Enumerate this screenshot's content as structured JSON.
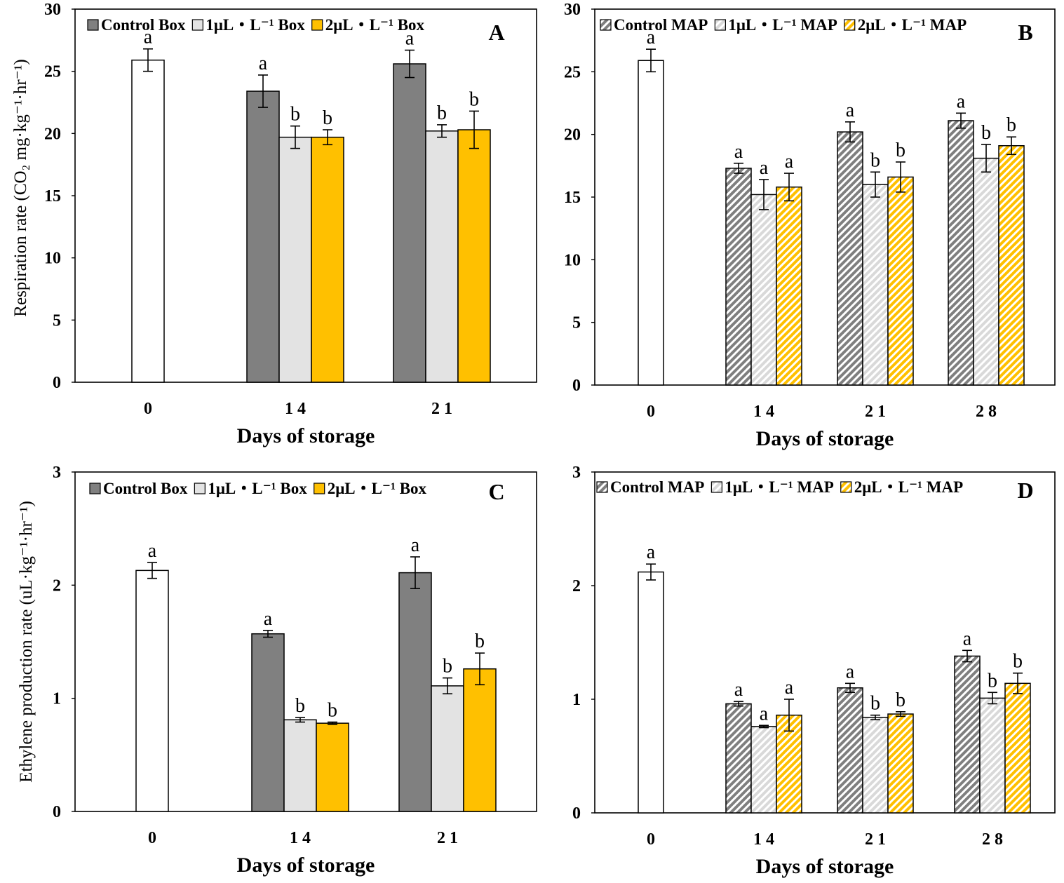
{
  "colors": {
    "initial": "#ffffff",
    "control": "#808080",
    "one": "#e3e3e3",
    "two": "#ffc000",
    "hatch_control": "#7f7f7f",
    "hatch_one": "#d9d9d9",
    "hatch_two": "#ffc000"
  },
  "chart_data": [
    {
      "type": "bar",
      "panel": "A",
      "xlabel": "Days of storage",
      "ylabel": "Respiration rate (CO₂ mg·kg⁻¹·hr⁻¹)",
      "ylim": [
        0,
        30
      ],
      "yticks": [
        0,
        5,
        10,
        15,
        20,
        25,
        30
      ],
      "categories": [
        "0",
        "14",
        "21"
      ],
      "legend_position": "top",
      "initial": {
        "value": 25.9,
        "err": 0.9,
        "label": "a"
      },
      "series": [
        {
          "name": "Control Box",
          "key": "control",
          "values": [
            null,
            23.4,
            25.6
          ],
          "err": [
            null,
            1.3,
            1.1
          ],
          "labels": [
            "",
            "a",
            "a"
          ]
        },
        {
          "name": "1μL・L⁻¹ Box",
          "key": "one",
          "values": [
            null,
            19.7,
            20.2
          ],
          "err": [
            null,
            0.9,
            0.5
          ],
          "labels": [
            "",
            "b",
            "b"
          ]
        },
        {
          "name": "2μL・L⁻¹ Box",
          "key": "two",
          "values": [
            null,
            19.7,
            20.3
          ],
          "err": [
            null,
            0.6,
            1.5
          ],
          "labels": [
            "",
            "b",
            "b"
          ]
        }
      ]
    },
    {
      "type": "bar",
      "panel": "B",
      "xlabel": "Days of storage",
      "ylabel": "",
      "ylim": [
        0,
        30
      ],
      "yticks": [
        0,
        5,
        10,
        15,
        20,
        25,
        30
      ],
      "categories": [
        "0",
        "14",
        "21",
        "28"
      ],
      "legend_position": "top",
      "initial": {
        "value": 25.9,
        "err": 0.9,
        "label": "a"
      },
      "series": [
        {
          "name": "Control MAP",
          "key": "control",
          "hatched": true,
          "values": [
            null,
            17.3,
            20.2,
            21.1
          ],
          "err": [
            null,
            0.4,
            0.8,
            0.6
          ],
          "labels": [
            "",
            "a",
            "a",
            "a"
          ]
        },
        {
          "name": "1μL・L⁻¹ MAP",
          "key": "one",
          "hatched": true,
          "values": [
            null,
            15.2,
            16.0,
            18.1
          ],
          "err": [
            null,
            1.2,
            1.0,
            1.1
          ],
          "labels": [
            "",
            "a",
            "b",
            "b"
          ]
        },
        {
          "name": "2μL・L⁻¹ MAP",
          "key": "two",
          "hatched": true,
          "values": [
            null,
            15.8,
            16.6,
            19.1
          ],
          "err": [
            null,
            1.1,
            1.2,
            0.7
          ],
          "labels": [
            "",
            "a",
            "b",
            "b"
          ]
        }
      ]
    },
    {
      "type": "bar",
      "panel": "C",
      "xlabel": "Days of storage",
      "ylabel": "Ethylene production rate (uL·kg⁻¹·hr⁻¹)",
      "ylim": [
        0,
        3
      ],
      "yticks": [
        0,
        1,
        2,
        3
      ],
      "categories": [
        "0",
        "14",
        "21"
      ],
      "legend_position": "top",
      "initial": {
        "value": 2.13,
        "err": 0.07,
        "label": "a"
      },
      "series": [
        {
          "name": "Control Box",
          "key": "control",
          "values": [
            null,
            1.57,
            2.11
          ],
          "err": [
            null,
            0.03,
            0.14
          ],
          "labels": [
            "",
            "a",
            "a"
          ]
        },
        {
          "name": "1μL・L⁻¹ Box",
          "key": "one",
          "values": [
            null,
            0.81,
            1.11
          ],
          "err": [
            null,
            0.02,
            0.07
          ],
          "labels": [
            "",
            "b",
            "b"
          ]
        },
        {
          "name": "2μL・L⁻¹ Box",
          "key": "two",
          "values": [
            null,
            0.78,
            1.26
          ],
          "err": [
            null,
            0.01,
            0.14
          ],
          "labels": [
            "",
            "b",
            "b"
          ]
        }
      ]
    },
    {
      "type": "bar",
      "panel": "D",
      "xlabel": "Days of storage",
      "ylabel": "",
      "ylim": [
        0,
        3
      ],
      "yticks": [
        0,
        1,
        2,
        3
      ],
      "categories": [
        "0",
        "14",
        "21",
        "28"
      ],
      "legend_position": "top",
      "initial": {
        "value": 2.12,
        "err": 0.07,
        "label": "a"
      },
      "series": [
        {
          "name": "Control MAP",
          "key": "control",
          "hatched": true,
          "values": [
            null,
            0.96,
            1.1,
            1.38
          ],
          "err": [
            null,
            0.02,
            0.04,
            0.05
          ],
          "labels": [
            "",
            "a",
            "a",
            "a"
          ]
        },
        {
          "name": "1μL・L⁻¹ MAP",
          "key": "one",
          "hatched": true,
          "values": [
            null,
            0.76,
            0.84,
            1.01
          ],
          "err": [
            null,
            0.01,
            0.02,
            0.05
          ],
          "labels": [
            "",
            "a",
            "b",
            "b"
          ]
        },
        {
          "name": "2μL・L⁻¹ MAP",
          "key": "two",
          "hatched": true,
          "values": [
            null,
            0.86,
            0.87,
            1.14
          ],
          "err": [
            null,
            0.14,
            0.02,
            0.09
          ],
          "labels": [
            "",
            "a",
            "b",
            "b"
          ]
        }
      ]
    }
  ]
}
